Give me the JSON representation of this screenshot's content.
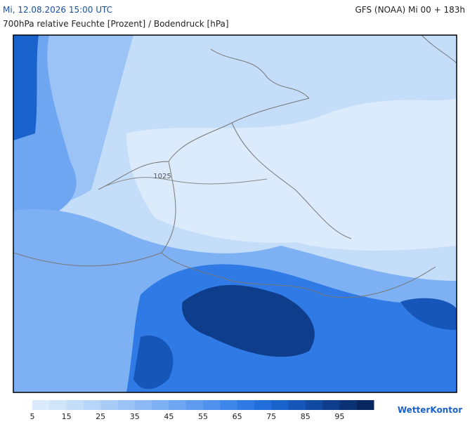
{
  "header": {
    "datetime": "Mi, 12.08.2026 15:00 UTC",
    "model": "GFS (NOAA) Mi 00 + 183h",
    "subtitle": "700hPa relative Feuchte [Prozent] / Bodendruck [hPa]"
  },
  "map": {
    "isobar_label": "1025"
  },
  "legend": {
    "ticks": [
      5,
      15,
      25,
      35,
      45,
      55,
      65,
      75,
      85,
      95
    ],
    "colors": [
      "#dcebfb",
      "#d0e4fa",
      "#c4ddf9",
      "#b7d5f8",
      "#a9ccf7",
      "#9bc3f6",
      "#8dbaf5",
      "#7eb0f4",
      "#6fa6f2",
      "#5f9cf0",
      "#4f91ed",
      "#3f86ea",
      "#2f7ae5",
      "#226edc",
      "#1a62cc",
      "#1556b8",
      "#114aa2",
      "#0e3e8b",
      "#0b3275",
      "#08265f"
    ]
  },
  "logo": "WetterKontor"
}
